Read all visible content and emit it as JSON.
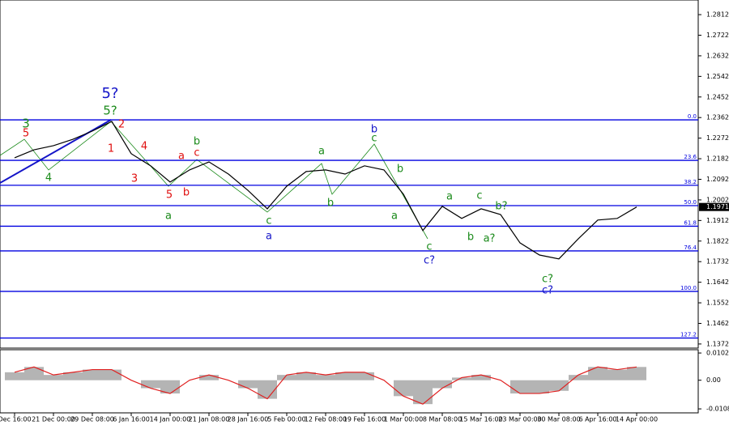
{
  "chart_data": [
    {
      "type": "line",
      "categories": [
        "Dec 16:00",
        null,
        "21 Dec 00:00",
        null,
        "29 Dec 08:00",
        null,
        "6 Jan 16:00",
        null,
        "14 Jan 00:00",
        null,
        "21 Jan 08:00",
        null,
        "28 Jan 16:00",
        null,
        "5 Feb 00:00",
        null,
        "12 Feb 08:00",
        null,
        "19 Feb 16:00",
        null,
        "1 Mar 00:00",
        null,
        "8 Mar 08:00",
        null,
        "15 Mar 16:00",
        null,
        "23 Mar 00:00",
        null,
        "30 Mar 08:00",
        null,
        "6 Apr 16:00",
        null,
        "14 Apr 00:00"
      ],
      "values": [
        1.2186,
        1.2221,
        1.2239,
        1.2267,
        1.2303,
        1.2345,
        1.2204,
        1.2151,
        1.208,
        1.2133,
        1.2168,
        1.2115,
        1.2044,
        1.1963,
        1.2062,
        1.2126,
        1.2133,
        1.2115,
        1.2151,
        1.2133,
        1.2027,
        1.1868,
        1.1974,
        1.1921,
        1.1963,
        1.1938,
        1.1814,
        1.1761,
        1.1744,
        1.1832,
        1.1914,
        1.1921,
        1.1971
      ],
      "color": "#000000",
      "ylim": [
        1.1354,
        1.2876
      ],
      "yticks": [
        1.2812,
        1.2722,
        1.2632,
        1.2542,
        1.2452,
        1.2362,
        1.2272,
        1.2182,
        1.2092,
        1.2002,
        1.1912,
        1.1822,
        1.1732,
        1.1642,
        1.1552,
        1.1462,
        1.1372
      ],
      "last_value": 1.1971,
      "level_color": "#0000e0",
      "levels": [
        {
          "value": 1.2352,
          "label": "0.0"
        },
        {
          "value": 1.2175,
          "label": "23.6"
        },
        {
          "value": 1.2066,
          "label": "38.2"
        },
        {
          "value": 1.1977,
          "label": "50.0"
        },
        {
          "value": 1.1887,
          "label": "61.8"
        },
        {
          "value": 1.1779,
          "label": "76.4"
        },
        {
          "value": 1.1602,
          "label": "100.0"
        },
        {
          "value": 1.1398,
          "label": "127.2"
        }
      ],
      "annotations": [
        {
          "text": "5?",
          "color": "#1414c8"
        },
        {
          "text": "5?",
          "color": "#1a8a1a"
        },
        {
          "text": "3",
          "color": "#1a8a1a"
        },
        {
          "text": "5",
          "color": "#e01010"
        },
        {
          "text": "4",
          "color": "#1a8a1a"
        },
        {
          "text": "1",
          "color": "#e01010"
        },
        {
          "text": "2",
          "color": "#e01010"
        },
        {
          "text": "4",
          "color": "#e01010"
        },
        {
          "text": "3",
          "color": "#e01010"
        },
        {
          "text": "5",
          "color": "#e01010"
        },
        {
          "text": "a",
          "color": "#e01010"
        },
        {
          "text": "b",
          "color": "#e01010"
        },
        {
          "text": "c",
          "color": "#e01010"
        },
        {
          "text": "b",
          "color": "#1a8a1a"
        },
        {
          "text": "a",
          "color": "#1a8a1a"
        },
        {
          "text": "c",
          "color": "#1a8a1a"
        },
        {
          "text": "a",
          "color": "#1414c8"
        },
        {
          "text": "a",
          "color": "#1a8a1a"
        },
        {
          "text": "b",
          "color": "#1a8a1a"
        },
        {
          "text": "b",
          "color": "#1414c8"
        },
        {
          "text": "c",
          "color": "#1a8a1a"
        },
        {
          "text": "b",
          "color": "#1a8a1a"
        },
        {
          "text": "a",
          "color": "#1a8a1a"
        },
        {
          "text": "c",
          "color": "#1a8a1a"
        },
        {
          "text": "c?",
          "color": "#1414c8"
        },
        {
          "text": "a",
          "color": "#1a8a1a"
        },
        {
          "text": "c",
          "color": "#1a8a1a"
        },
        {
          "text": "b",
          "color": "#1a8a1a"
        },
        {
          "text": "b?",
          "color": "#1a8a1a"
        },
        {
          "text": "a?",
          "color": "#1a8a1a"
        },
        {
          "text": "c?",
          "color": "#1a8a1a"
        },
        {
          "text": "c?",
          "color": "#1414c8"
        }
      ]
    },
    {
      "type": "bar",
      "values": [
        0.003,
        0.005,
        0.002,
        0.003,
        0.004,
        0.004,
        0,
        -0.003,
        -0.005,
        0,
        0.002,
        0,
        -0.003,
        -0.007,
        0.002,
        0.003,
        0.002,
        0.003,
        0.003,
        0,
        -0.006,
        -0.009,
        -0.003,
        0.001,
        0.002,
        0,
        -0.005,
        -0.005,
        -0.004,
        0.002,
        0.005,
        0.004,
        0.005
      ],
      "color": "#b4b4b4",
      "line_color": "#e02020",
      "ylim": [
        -0.0123,
        0.0115
      ],
      "yticks": [
        0.01026,
        {
          "value": 0,
          "label": "0.00"
        },
        -0.0108
      ]
    }
  ]
}
